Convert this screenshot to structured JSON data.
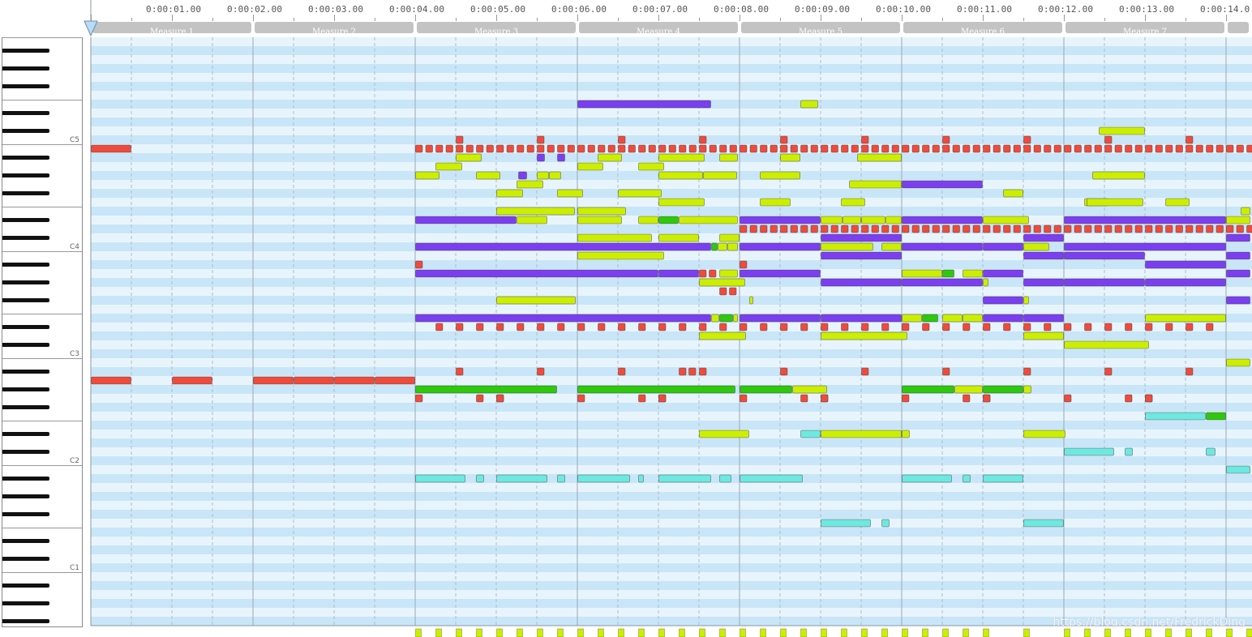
{
  "ruler": {
    "times": [
      "0:00:01.00",
      "0:00:02.00",
      "0:00:03.00",
      "0:00:04.00",
      "0:00:05.00",
      "0:00:06.00",
      "0:00:07.00",
      "0:00:08.00",
      "0:00:09.00",
      "0:00:10.00",
      "0:00:11.00",
      "0:00:12.00",
      "0:00:13.00",
      "0:00:14.0"
    ],
    "measures": [
      "Measure 1",
      "Measure 2",
      "Measure 3",
      "Measure 4",
      "Measure 5",
      "Measure 6",
      "Measure 7",
      ""
    ]
  },
  "piano": {
    "octave_labels": [
      "C5",
      "C4",
      "C3",
      "C2",
      "C1"
    ]
  },
  "colors": {
    "lane_light": "#e8f4fc",
    "lane_dark": "#c9e6f8",
    "measure_header": "#c3c3c3",
    "red": "#ee4b3c",
    "purple": "#7b3ff0",
    "lime": "#ccee00",
    "green": "#2ec80c",
    "cyan": "#6ee8e0",
    "playhead": "#b8dcf4"
  },
  "notes": [
    {
      "lane": 7,
      "start": 6.0,
      "end": 7.65,
      "color": "purple"
    },
    {
      "lane": 7,
      "start": 8.75,
      "end": 8.97,
      "color": "lime"
    },
    {
      "lane": 10,
      "start": 12.43,
      "end": 13.0,
      "color": "lime"
    },
    {
      "lane": 12,
      "start": 0.0,
      "end": 0.5,
      "color": "red"
    },
    {
      "lane": 13,
      "start": 4.5,
      "end": 4.82,
      "color": "lime"
    },
    {
      "lane": 13,
      "start": 5.5,
      "end": 5.6,
      "color": "purple"
    },
    {
      "lane": 13,
      "start": 5.75,
      "end": 5.85,
      "color": "purple"
    },
    {
      "lane": 13,
      "start": 6.25,
      "end": 6.55,
      "color": "lime"
    },
    {
      "lane": 13,
      "start": 7.0,
      "end": 7.57,
      "color": "lime"
    },
    {
      "lane": 13,
      "start": 7.75,
      "end": 7.98,
      "color": "lime"
    },
    {
      "lane": 13,
      "start": 8.5,
      "end": 8.75,
      "color": "lime"
    },
    {
      "lane": 13,
      "start": 9.45,
      "end": 10.0,
      "color": "lime"
    },
    {
      "lane": 14,
      "start": 4.25,
      "end": 4.58,
      "color": "lime"
    },
    {
      "lane": 14,
      "start": 6.0,
      "end": 6.32,
      "color": "lime"
    },
    {
      "lane": 14,
      "start": 6.75,
      "end": 7.07,
      "color": "lime"
    },
    {
      "lane": 15,
      "start": 4.0,
      "end": 4.3,
      "color": "lime"
    },
    {
      "lane": 15,
      "start": 4.75,
      "end": 5.05,
      "color": "lime"
    },
    {
      "lane": 15,
      "start": 5.27,
      "end": 5.38,
      "color": "purple"
    },
    {
      "lane": 15,
      "start": 5.5,
      "end": 5.65,
      "color": "lime"
    },
    {
      "lane": 15,
      "start": 5.65,
      "end": 5.8,
      "color": "lime"
    },
    {
      "lane": 15,
      "start": 7.0,
      "end": 7.55,
      "color": "lime"
    },
    {
      "lane": 15,
      "start": 7.55,
      "end": 7.97,
      "color": "lime"
    },
    {
      "lane": 15,
      "start": 8.25,
      "end": 8.75,
      "color": "lime"
    },
    {
      "lane": 15,
      "start": 12.35,
      "end": 13.0,
      "color": "lime"
    },
    {
      "lane": 16,
      "start": 5.25,
      "end": 5.58,
      "color": "lime"
    },
    {
      "lane": 16,
      "start": 9.35,
      "end": 10.0,
      "color": "lime"
    },
    {
      "lane": 16,
      "start": 10.0,
      "end": 11.0,
      "color": "purple"
    },
    {
      "lane": 17,
      "start": 5.0,
      "end": 5.33,
      "color": "lime"
    },
    {
      "lane": 17,
      "start": 5.75,
      "end": 6.07,
      "color": "lime"
    },
    {
      "lane": 17,
      "start": 6.5,
      "end": 7.04,
      "color": "lime"
    },
    {
      "lane": 17,
      "start": 11.25,
      "end": 11.5,
      "color": "lime"
    },
    {
      "lane": 18,
      "start": 7.0,
      "end": 7.57,
      "color": "lime"
    },
    {
      "lane": 18,
      "start": 8.25,
      "end": 8.63,
      "color": "lime"
    },
    {
      "lane": 18,
      "start": 9.25,
      "end": 9.55,
      "color": "lime"
    },
    {
      "lane": 18,
      "start": 12.25,
      "end": 12.55,
      "color": "lime"
    },
    {
      "lane": 18,
      "start": 12.28,
      "end": 12.98,
      "color": "lime"
    },
    {
      "lane": 18,
      "start": 13.25,
      "end": 13.55,
      "color": "lime"
    },
    {
      "lane": 19,
      "start": 5.0,
      "end": 5.97,
      "color": "lime"
    },
    {
      "lane": 19,
      "start": 6.0,
      "end": 6.6,
      "color": "lime"
    },
    {
      "lane": 19,
      "start": 14.18,
      "end": 14.3,
      "color": "lime"
    },
    {
      "lane": 20,
      "start": 4.0,
      "end": 5.25,
      "color": "purple"
    },
    {
      "lane": 20,
      "start": 5.25,
      "end": 5.63,
      "color": "lime"
    },
    {
      "lane": 20,
      "start": 6.0,
      "end": 6.55,
      "color": "lime"
    },
    {
      "lane": 20,
      "start": 6.75,
      "end": 7.0,
      "color": "lime"
    },
    {
      "lane": 20,
      "start": 7.0,
      "end": 7.25,
      "color": "green"
    },
    {
      "lane": 20,
      "start": 7.25,
      "end": 7.98,
      "color": "lime"
    },
    {
      "lane": 20,
      "start": 8.0,
      "end": 9.0,
      "color": "purple"
    },
    {
      "lane": 20,
      "start": 9.0,
      "end": 9.27,
      "color": "lime"
    },
    {
      "lane": 20,
      "start": 9.27,
      "end": 9.5,
      "color": "lime"
    },
    {
      "lane": 20,
      "start": 9.5,
      "end": 9.8,
      "color": "lime"
    },
    {
      "lane": 20,
      "start": 9.8,
      "end": 10.0,
      "color": "lime"
    },
    {
      "lane": 20,
      "start": 10.0,
      "end": 11.0,
      "color": "purple"
    },
    {
      "lane": 20,
      "start": 11.0,
      "end": 11.57,
      "color": "lime"
    },
    {
      "lane": 20,
      "start": 12.0,
      "end": 14.0,
      "color": "purple"
    },
    {
      "lane": 20,
      "start": 14.0,
      "end": 14.3,
      "color": "lime"
    },
    {
      "lane": 22,
      "start": 6.0,
      "end": 6.92,
      "color": "lime"
    },
    {
      "lane": 22,
      "start": 7.0,
      "end": 7.5,
      "color": "lime"
    },
    {
      "lane": 22,
      "start": 7.75,
      "end": 8.0,
      "color": "lime"
    },
    {
      "lane": 22,
      "start": 9.0,
      "end": 10.0,
      "color": "purple"
    },
    {
      "lane": 22,
      "start": 11.5,
      "end": 12.0,
      "color": "purple"
    },
    {
      "lane": 22,
      "start": 14.0,
      "end": 14.3,
      "color": "purple"
    },
    {
      "lane": 23,
      "start": 4.0,
      "end": 7.65,
      "color": "purple"
    },
    {
      "lane": 23,
      "start": 7.65,
      "end": 7.73,
      "color": "green"
    },
    {
      "lane": 23,
      "start": 7.73,
      "end": 7.85,
      "color": "lime"
    },
    {
      "lane": 23,
      "start": 7.85,
      "end": 7.98,
      "color": "lime"
    },
    {
      "lane": 23,
      "start": 8.0,
      "end": 9.0,
      "color": "purple"
    },
    {
      "lane": 23,
      "start": 9.0,
      "end": 9.65,
      "color": "lime"
    },
    {
      "lane": 23,
      "start": 9.75,
      "end": 10.0,
      "color": "lime"
    },
    {
      "lane": 23,
      "start": 10.0,
      "end": 11.0,
      "color": "purple"
    },
    {
      "lane": 23,
      "start": 11.0,
      "end": 11.5,
      "color": "purple"
    },
    {
      "lane": 23,
      "start": 11.5,
      "end": 11.82,
      "color": "lime"
    },
    {
      "lane": 23,
      "start": 12.0,
      "end": 14.0,
      "color": "purple"
    },
    {
      "lane": 24,
      "start": 6.0,
      "end": 7.07,
      "color": "lime"
    },
    {
      "lane": 24,
      "start": 9.0,
      "end": 10.0,
      "color": "purple"
    },
    {
      "lane": 24,
      "start": 11.5,
      "end": 12.0,
      "color": "purple"
    },
    {
      "lane": 24,
      "start": 12.0,
      "end": 13.0,
      "color": "purple"
    },
    {
      "lane": 24,
      "start": 14.0,
      "end": 14.3,
      "color": "purple"
    },
    {
      "lane": 25,
      "start": 13.0,
      "end": 14.0,
      "color": "purple"
    },
    {
      "lane": 26,
      "start": 4.0,
      "end": 7.0,
      "color": "purple"
    },
    {
      "lane": 26,
      "start": 7.0,
      "end": 7.5,
      "color": "purple"
    },
    {
      "lane": 26,
      "start": 7.75,
      "end": 7.98,
      "color": "lime"
    },
    {
      "lane": 26,
      "start": 8.0,
      "end": 9.0,
      "color": "purple"
    },
    {
      "lane": 26,
      "start": 10.0,
      "end": 10.5,
      "color": "lime"
    },
    {
      "lane": 26,
      "start": 10.5,
      "end": 10.65,
      "color": "green"
    },
    {
      "lane": 26,
      "start": 10.75,
      "end": 11.0,
      "color": "lime"
    },
    {
      "lane": 26,
      "start": 11.0,
      "end": 11.5,
      "color": "purple"
    },
    {
      "lane": 26,
      "start": 14.0,
      "end": 14.3,
      "color": "purple"
    },
    {
      "lane": 27,
      "start": 7.5,
      "end": 8.07,
      "color": "lime"
    },
    {
      "lane": 27,
      "start": 9.0,
      "end": 10.0,
      "color": "purple"
    },
    {
      "lane": 27,
      "start": 10.0,
      "end": 11.0,
      "color": "purple"
    },
    {
      "lane": 27,
      "start": 11.0,
      "end": 11.07,
      "color": "lime"
    },
    {
      "lane": 27,
      "start": 11.5,
      "end": 12.0,
      "color": "purple"
    },
    {
      "lane": 27,
      "start": 12.0,
      "end": 13.0,
      "color": "purple"
    },
    {
      "lane": 27,
      "start": 13.0,
      "end": 14.0,
      "color": "purple"
    },
    {
      "lane": 29,
      "start": 5.0,
      "end": 5.98,
      "color": "lime"
    },
    {
      "lane": 29,
      "start": 8.12,
      "end": 8.17,
      "color": "lime"
    },
    {
      "lane": 29,
      "start": 11.0,
      "end": 11.5,
      "color": "purple"
    },
    {
      "lane": 29,
      "start": 11.5,
      "end": 11.57,
      "color": "lime"
    },
    {
      "lane": 29,
      "start": 14.0,
      "end": 14.3,
      "color": "purple"
    },
    {
      "lane": 31,
      "start": 4.0,
      "end": 7.65,
      "color": "purple"
    },
    {
      "lane": 31,
      "start": 7.65,
      "end": 7.75,
      "color": "lime"
    },
    {
      "lane": 31,
      "start": 7.75,
      "end": 7.92,
      "color": "green"
    },
    {
      "lane": 31,
      "start": 7.92,
      "end": 7.98,
      "color": "lime"
    },
    {
      "lane": 31,
      "start": 8.0,
      "end": 9.0,
      "color": "purple"
    },
    {
      "lane": 31,
      "start": 9.0,
      "end": 10.0,
      "color": "purple"
    },
    {
      "lane": 31,
      "start": 10.0,
      "end": 10.25,
      "color": "lime"
    },
    {
      "lane": 31,
      "start": 10.25,
      "end": 10.45,
      "color": "green"
    },
    {
      "lane": 31,
      "start": 10.5,
      "end": 10.75,
      "color": "lime"
    },
    {
      "lane": 31,
      "start": 10.75,
      "end": 11.0,
      "color": "lime"
    },
    {
      "lane": 31,
      "start": 11.0,
      "end": 11.5,
      "color": "purple"
    },
    {
      "lane": 31,
      "start": 11.5,
      "end": 12.0,
      "color": "purple"
    },
    {
      "lane": 31,
      "start": 13.0,
      "end": 14.0,
      "color": "lime"
    },
    {
      "lane": 33,
      "start": 7.5,
      "end": 8.08,
      "color": "lime"
    },
    {
      "lane": 33,
      "start": 9.0,
      "end": 10.07,
      "color": "lime"
    },
    {
      "lane": 33,
      "start": 11.5,
      "end": 12.0,
      "color": "lime"
    },
    {
      "lane": 34,
      "start": 12.0,
      "end": 13.05,
      "color": "lime"
    },
    {
      "lane": 36,
      "start": 14.0,
      "end": 14.3,
      "color": "lime"
    },
    {
      "lane": 38,
      "start": 0.0,
      "end": 0.5,
      "color": "red"
    },
    {
      "lane": 38,
      "start": 1.0,
      "end": 1.5,
      "color": "red"
    },
    {
      "lane": 38,
      "start": 2.0,
      "end": 2.5,
      "color": "red"
    },
    {
      "lane": 38,
      "start": 2.5,
      "end": 3.0,
      "color": "red"
    },
    {
      "lane": 38,
      "start": 3.0,
      "end": 3.5,
      "color": "red"
    },
    {
      "lane": 38,
      "start": 3.5,
      "end": 4.0,
      "color": "red"
    },
    {
      "lane": 39,
      "start": 4.0,
      "end": 5.75,
      "color": "green"
    },
    {
      "lane": 39,
      "start": 6.0,
      "end": 7.95,
      "color": "green"
    },
    {
      "lane": 39,
      "start": 8.0,
      "end": 8.65,
      "color": "green"
    },
    {
      "lane": 39,
      "start": 8.65,
      "end": 9.08,
      "color": "lime"
    },
    {
      "lane": 39,
      "start": 10.0,
      "end": 10.65,
      "color": "green"
    },
    {
      "lane": 39,
      "start": 10.65,
      "end": 11.0,
      "color": "lime"
    },
    {
      "lane": 39,
      "start": 11.0,
      "end": 11.5,
      "color": "green"
    },
    {
      "lane": 39,
      "start": 11.5,
      "end": 11.6,
      "color": "lime"
    },
    {
      "lane": 42,
      "start": 13.0,
      "end": 13.75,
      "color": "cyan"
    },
    {
      "lane": 42,
      "start": 13.75,
      "end": 14.0,
      "color": "green"
    },
    {
      "lane": 44,
      "start": 7.5,
      "end": 8.12,
      "color": "lime"
    },
    {
      "lane": 44,
      "start": 8.75,
      "end": 9.0,
      "color": "cyan"
    },
    {
      "lane": 44,
      "start": 9.0,
      "end": 10.0,
      "color": "lime"
    },
    {
      "lane": 44,
      "start": 10.0,
      "end": 10.1,
      "color": "lime"
    },
    {
      "lane": 44,
      "start": 11.5,
      "end": 12.02,
      "color": "lime"
    },
    {
      "lane": 46,
      "start": 12.0,
      "end": 12.62,
      "color": "cyan"
    },
    {
      "lane": 46,
      "start": 12.75,
      "end": 12.85,
      "color": "cyan"
    },
    {
      "lane": 46,
      "start": 13.75,
      "end": 13.87,
      "color": "cyan"
    },
    {
      "lane": 48,
      "start": 14.0,
      "end": 14.3,
      "color": "cyan"
    },
    {
      "lane": 49,
      "start": 4.0,
      "end": 4.62,
      "color": "cyan"
    },
    {
      "lane": 49,
      "start": 4.75,
      "end": 4.85,
      "color": "cyan"
    },
    {
      "lane": 49,
      "start": 5.0,
      "end": 5.63,
      "color": "cyan"
    },
    {
      "lane": 49,
      "start": 5.75,
      "end": 5.85,
      "color": "cyan"
    },
    {
      "lane": 49,
      "start": 6.0,
      "end": 6.65,
      "color": "cyan"
    },
    {
      "lane": 49,
      "start": 6.75,
      "end": 6.82,
      "color": "cyan"
    },
    {
      "lane": 49,
      "start": 7.0,
      "end": 7.65,
      "color": "cyan"
    },
    {
      "lane": 49,
      "start": 7.75,
      "end": 7.9,
      "color": "cyan"
    },
    {
      "lane": 49,
      "start": 8.0,
      "end": 8.78,
      "color": "cyan"
    },
    {
      "lane": 49,
      "start": 10.0,
      "end": 10.62,
      "color": "cyan"
    },
    {
      "lane": 49,
      "start": 10.75,
      "end": 10.85,
      "color": "cyan"
    },
    {
      "lane": 49,
      "start": 11.0,
      "end": 11.5,
      "color": "cyan"
    },
    {
      "lane": 54,
      "start": 9.0,
      "end": 9.62,
      "color": "cyan"
    },
    {
      "lane": 54,
      "start": 9.75,
      "end": 9.85,
      "color": "cyan"
    },
    {
      "lane": 54,
      "start": 11.5,
      "end": 12.0,
      "color": "cyan"
    }
  ],
  "beat_rows": [
    {
      "lane": 11,
      "start": 4.5,
      "end": 14.0,
      "step": 1.0,
      "color": "red"
    },
    {
      "lane": 12,
      "start": 4.0,
      "end": 14.3,
      "step": 0.125,
      "color": "red"
    },
    {
      "lane": 21,
      "start": 8.0,
      "end": 14.3,
      "step": 0.125,
      "color": "red"
    },
    {
      "lane": 32,
      "start": 4.25,
      "end": 14.0,
      "step": 0.25,
      "color": "red"
    },
    {
      "lane": 37,
      "start": 4.5,
      "end": 14.0,
      "step": 1.0,
      "color": "red"
    },
    {
      "lane": 40,
      "start": 4.0,
      "end": 14.0,
      "step": 1.0,
      "color": "red"
    }
  ],
  "extra_red": [
    {
      "lane": 25,
      "t": 4.0
    },
    {
      "lane": 26,
      "t": 7.5
    },
    {
      "lane": 26,
      "t": 7.62
    },
    {
      "lane": 25,
      "t": 8.0
    },
    {
      "lane": 28,
      "t": 7.75
    },
    {
      "lane": 28,
      "t": 7.87
    },
    {
      "lane": 37,
      "t": 7.25
    },
    {
      "lane": 37,
      "t": 7.37
    },
    {
      "lane": 40,
      "t": 4.75
    },
    {
      "lane": 40,
      "t": 5.0
    },
    {
      "lane": 40,
      "t": 6.75
    },
    {
      "lane": 40,
      "t": 7.0
    },
    {
      "lane": 40,
      "t": 8.75
    },
    {
      "lane": 40,
      "t": 9.0
    },
    {
      "lane": 40,
      "t": 10.75
    },
    {
      "lane": 40,
      "t": 11.0
    },
    {
      "lane": 40,
      "t": 12.75
    },
    {
      "lane": 40,
      "t": 13.0
    }
  ]
}
